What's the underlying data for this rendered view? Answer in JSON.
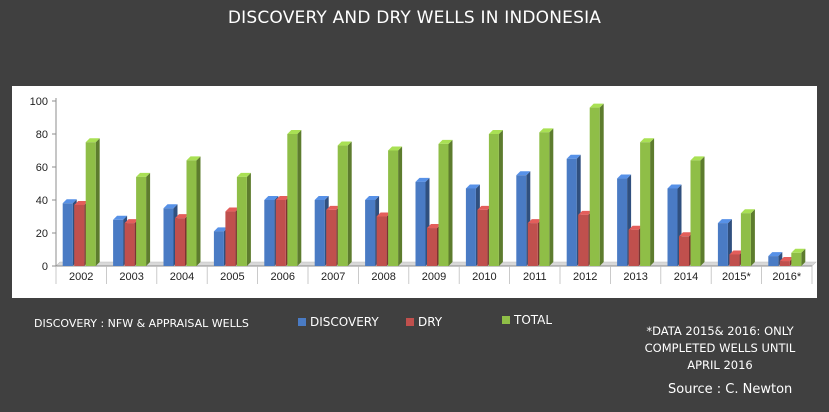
{
  "title": "DISCOVERY AND DRY WELLS IN INDONESIA",
  "note_left": "DISCOVERY : NFW & APPRAISAL WELLS",
  "footnote_lines": [
    "*DATA 2015& 2016: ONLY",
    "COMPLETED WELLS UNTIL",
    "APRIL 2016"
  ],
  "source": "Source : C. Newton",
  "colors": {
    "background": "#404040",
    "discovery": "#4a7bc4",
    "dry": "#c0504d",
    "total": "#8fbe47"
  },
  "chart_data": {
    "type": "bar",
    "title": "DISCOVERY AND DRY WELLS IN INDONESIA",
    "categories": [
      "2002",
      "2003",
      "2004",
      "2005",
      "2006",
      "2007",
      "2008",
      "2009",
      "2010",
      "2011",
      "2012",
      "2013",
      "2014",
      "2015*",
      "2016*"
    ],
    "series": [
      {
        "name": "DISCOVERY",
        "color": "#4a7bc4",
        "values": [
          38,
          28,
          35,
          21,
          40,
          40,
          40,
          51,
          47,
          55,
          65,
          53,
          47,
          26,
          6
        ]
      },
      {
        "name": "DRY",
        "color": "#c0504d",
        "values": [
          37,
          26,
          29,
          33,
          40,
          34,
          30,
          23,
          34,
          26,
          31,
          22,
          18,
          7,
          3
        ]
      },
      {
        "name": "TOTAL",
        "color": "#8fbe47",
        "values": [
          75,
          54,
          64,
          54,
          80,
          73,
          70,
          74,
          80,
          81,
          96,
          75,
          64,
          32,
          8
        ]
      }
    ],
    "yticks": [
      0,
      20,
      40,
      60,
      80,
      100
    ],
    "ylim": [
      0,
      100
    ],
    "grid": false,
    "legend_position": "bottom"
  }
}
